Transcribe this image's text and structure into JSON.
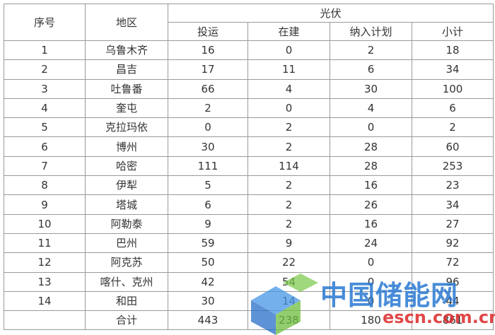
{
  "table": {
    "header": {
      "seq": "序号",
      "region": "地区",
      "group": "光伏",
      "sub": [
        "投运",
        "在建",
        "纳入计划",
        "小计"
      ]
    },
    "rows": [
      [
        1,
        "乌鲁木齐",
        16,
        0,
        2,
        18
      ],
      [
        2,
        "昌吉",
        17,
        11,
        6,
        34
      ],
      [
        3,
        "吐鲁番",
        66,
        4,
        30,
        100
      ],
      [
        4,
        "奎屯",
        2,
        0,
        4,
        6
      ],
      [
        5,
        "克拉玛依",
        0,
        2,
        0,
        2
      ],
      [
        6,
        "博州",
        30,
        2,
        28,
        60
      ],
      [
        7,
        "哈密",
        111,
        114,
        28,
        253
      ],
      [
        8,
        "伊犁",
        5,
        2,
        16,
        23
      ],
      [
        9,
        "塔城",
        6,
        2,
        26,
        34
      ],
      [
        10,
        "阿勒泰",
        9,
        2,
        16,
        27
      ],
      [
        11,
        "巴州",
        59,
        9,
        24,
        92
      ],
      [
        12,
        "阿克苏",
        50,
        22,
        0,
        72
      ],
      [
        13,
        "喀什、克州",
        42,
        54,
        0,
        96
      ],
      [
        14,
        "和田",
        30,
        14,
        0,
        44
      ]
    ],
    "total": {
      "label": "合计",
      "values": [
        443,
        238,
        180,
        861
      ]
    }
  },
  "watermark": {
    "name": "中国储能网",
    "site": "escn.com.cn"
  }
}
